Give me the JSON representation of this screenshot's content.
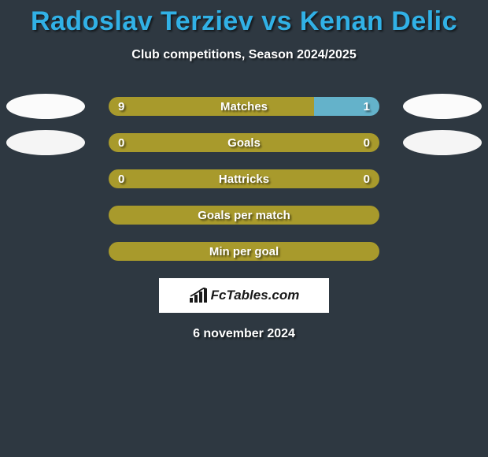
{
  "title": "Radoslav Terziev vs Kenan Delic",
  "subtitle": "Club competitions, Season 2024/2025",
  "colors": {
    "bar_full": "#a89a2c",
    "bar_partial": "#64b2ca",
    "ellipse_row1": "#fbfbfb",
    "ellipse_row2": "#f5f5f5"
  },
  "bars": [
    {
      "label": "Matches",
      "left_val": "9",
      "right_val": "1",
      "left_pct": 76,
      "right_pct": 24,
      "left_color": "#a89a2c",
      "right_color": "#64b2ca",
      "show_ellipses": true,
      "ellipse_color": "#fbfbfb"
    },
    {
      "label": "Goals",
      "left_val": "0",
      "right_val": "0",
      "left_pct": 100,
      "right_pct": 0,
      "left_color": "#a89a2c",
      "right_color": "#64b2ca",
      "show_ellipses": true,
      "ellipse_color": "#f5f5f5"
    },
    {
      "label": "Hattricks",
      "left_val": "0",
      "right_val": "0",
      "left_pct": 100,
      "right_pct": 0,
      "left_color": "#a89a2c",
      "right_color": "#64b2ca",
      "show_ellipses": false
    },
    {
      "label": "Goals per match",
      "left_val": "",
      "right_val": "",
      "left_pct": 100,
      "right_pct": 0,
      "left_color": "#a89a2c",
      "right_color": "#64b2ca",
      "show_ellipses": false
    },
    {
      "label": "Min per goal",
      "left_val": "",
      "right_val": "",
      "left_pct": 100,
      "right_pct": 0,
      "left_color": "#a89a2c",
      "right_color": "#64b2ca",
      "show_ellipses": false
    }
  ],
  "logo_text": "FcTables.com",
  "date": "6 november 2024"
}
